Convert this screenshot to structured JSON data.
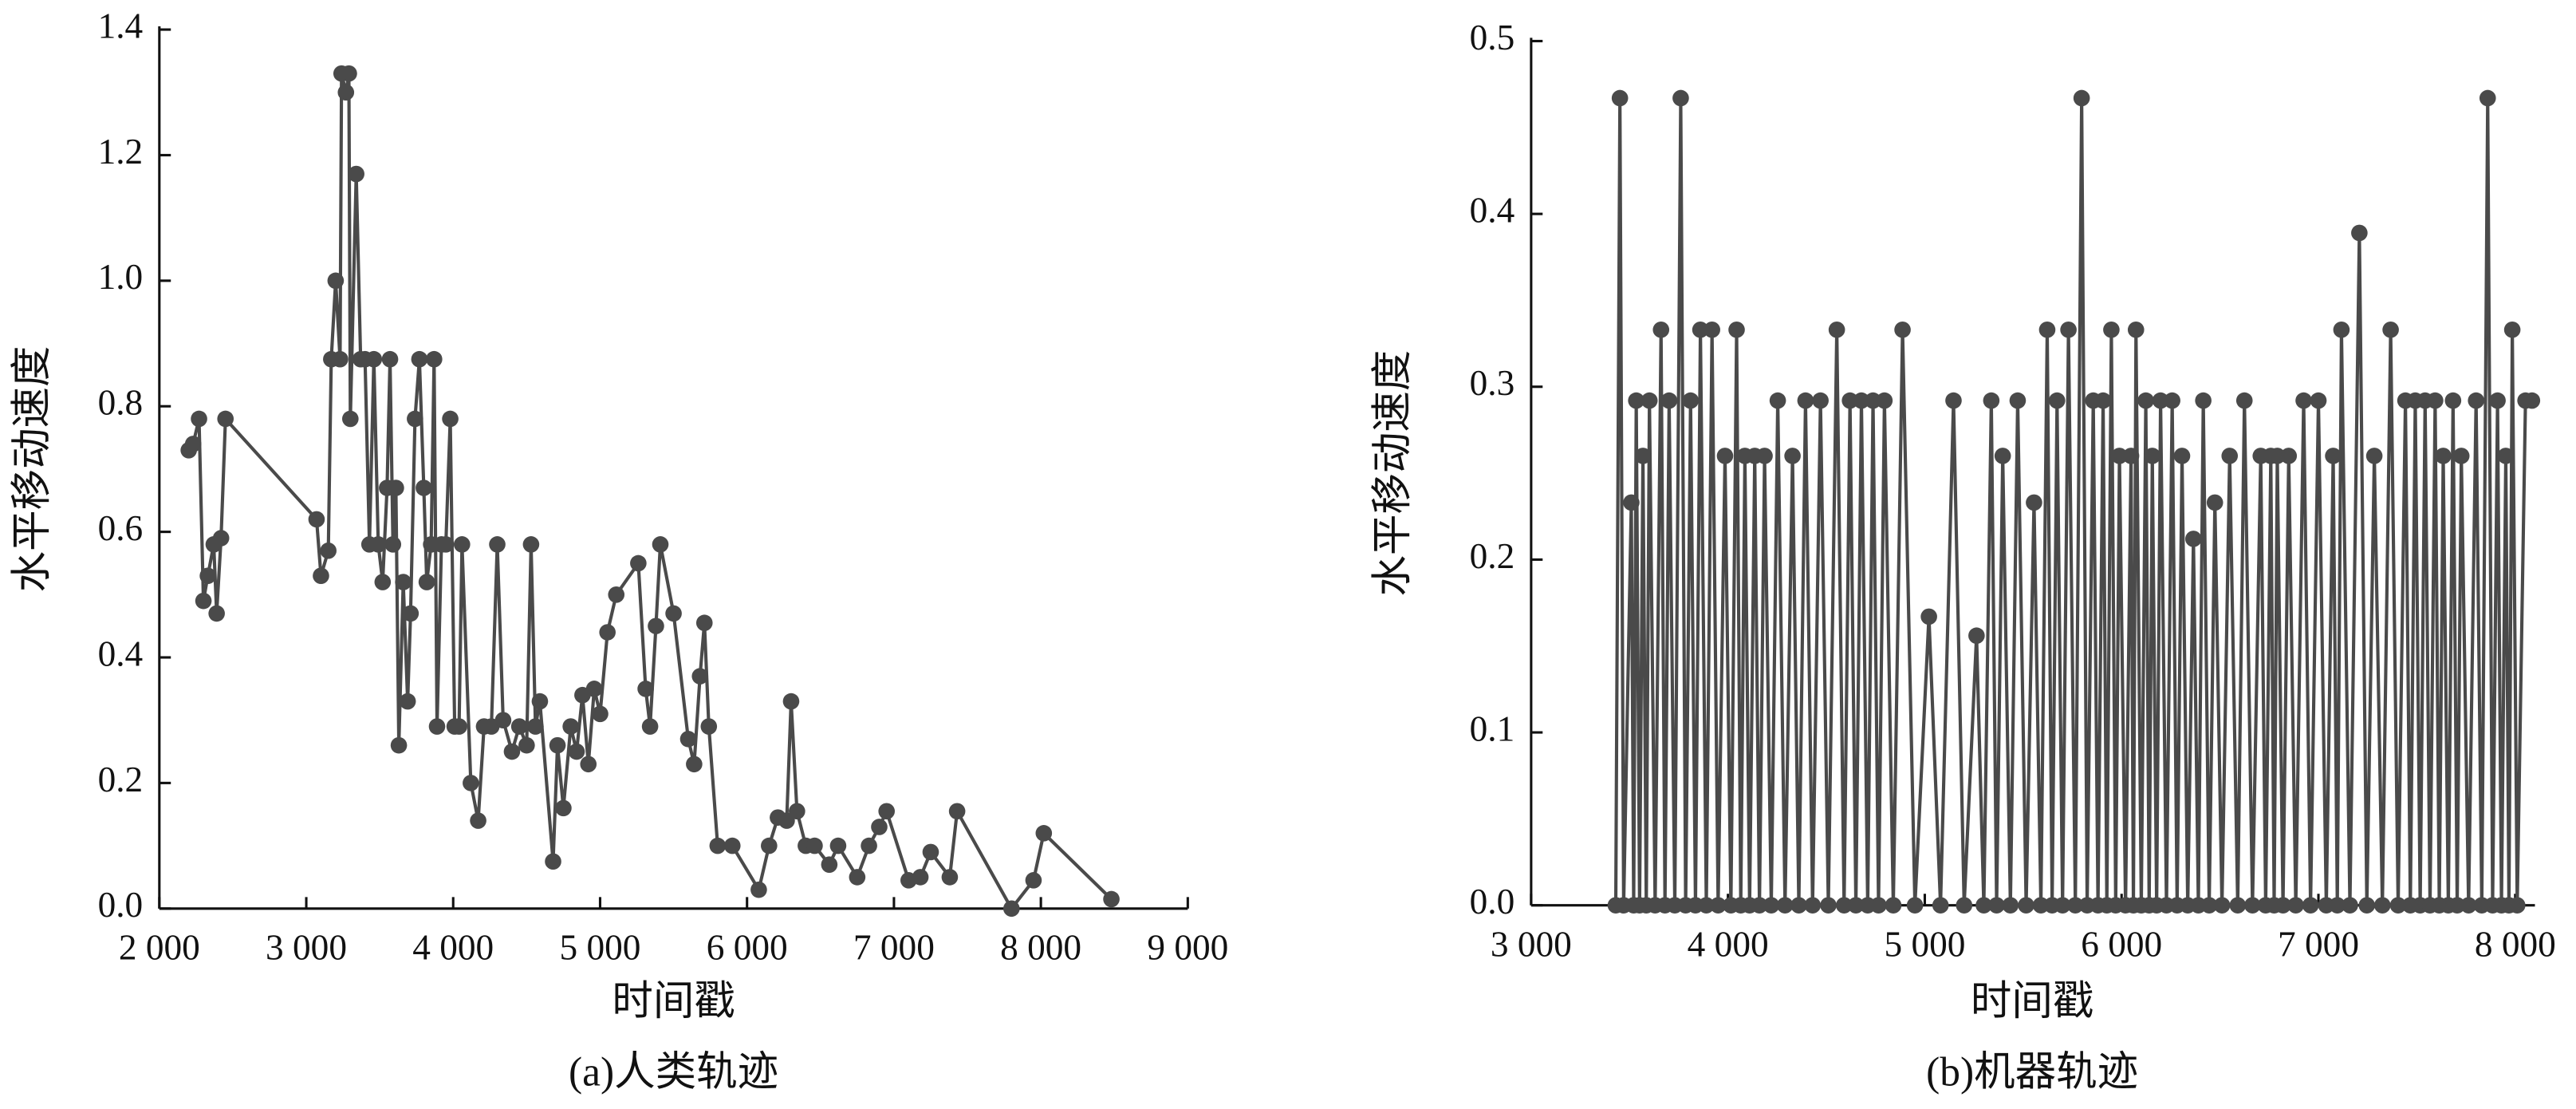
{
  "chart_data": [
    {
      "type": "line",
      "caption": "(a)人类轨迹",
      "xlabel": "时间戳",
      "ylabel": "水平移动速度",
      "color": "#4a4a4a",
      "xlim": [
        2000,
        9000
      ],
      "ylim": [
        0,
        1.4
      ],
      "xticks": [
        {
          "value": 2000,
          "label": "2 000"
        },
        {
          "value": 3000,
          "label": "3 000"
        },
        {
          "value": 4000,
          "label": "4 000"
        },
        {
          "value": 5000,
          "label": "5 000"
        },
        {
          "value": 6000,
          "label": "6 000"
        },
        {
          "value": 7000,
          "label": "7 000"
        },
        {
          "value": 8000,
          "label": "8 000"
        },
        {
          "value": 9000,
          "label": "9 000"
        }
      ],
      "yticks": [
        {
          "value": 0,
          "label": "0.0"
        },
        0.2,
        0.4,
        0.6,
        0.8,
        {
          "value": 1,
          "label": "1.0"
        },
        1.2,
        1.4
      ],
      "x": [
        2200,
        2230,
        2270,
        2300,
        2330,
        2370,
        2390,
        2420,
        2450,
        3070,
        3100,
        3150,
        3170,
        3200,
        3230,
        3240,
        3270,
        3290,
        3300,
        3340,
        3370,
        3400,
        3430,
        3460,
        3490,
        3520,
        3550,
        3570,
        3590,
        3610,
        3630,
        3660,
        3690,
        3710,
        3740,
        3770,
        3800,
        3820,
        3850,
        3870,
        3890,
        3920,
        3950,
        3980,
        4010,
        4040,
        4060,
        4120,
        4170,
        4210,
        4260,
        4300,
        4340,
        4400,
        4450,
        4500,
        4530,
        4560,
        4590,
        4680,
        4710,
        4750,
        4800,
        4840,
        4880,
        4920,
        4960,
        5000,
        5050,
        5110,
        5260,
        5310,
        5340,
        5380,
        5410,
        5500,
        5600,
        5640,
        5680,
        5710,
        5740,
        5800,
        5900,
        6080,
        6150,
        6210,
        6270,
        6300,
        6340,
        6400,
        6460,
        6560,
        6620,
        6750,
        6830,
        6900,
        6950,
        7100,
        7180,
        7250,
        7380,
        7430,
        7800,
        7950,
        8020,
        8480
      ],
      "values": [
        0.73,
        0.74,
        0.78,
        0.49,
        0.53,
        0.58,
        0.47,
        0.59,
        0.78,
        0.62,
        0.53,
        0.57,
        0.875,
        1.0,
        0.875,
        1.33,
        1.3,
        1.33,
        0.78,
        1.17,
        0.875,
        0.875,
        0.58,
        0.875,
        0.58,
        0.52,
        0.67,
        0.875,
        0.58,
        0.67,
        0.26,
        0.52,
        0.33,
        0.47,
        0.78,
        0.875,
        0.67,
        0.52,
        0.58,
        0.875,
        0.29,
        0.58,
        0.58,
        0.78,
        0.29,
        0.29,
        0.58,
        0.2,
        0.14,
        0.29,
        0.29,
        0.58,
        0.3,
        0.25,
        0.29,
        0.26,
        0.58,
        0.29,
        0.33,
        0.075,
        0.26,
        0.16,
        0.29,
        0.25,
        0.34,
        0.23,
        0.35,
        0.31,
        0.44,
        0.5,
        0.55,
        0.35,
        0.29,
        0.45,
        0.58,
        0.47,
        0.27,
        0.23,
        0.37,
        0.455,
        0.29,
        0.1,
        0.1,
        0.03,
        0.1,
        0.145,
        0.14,
        0.33,
        0.155,
        0.1,
        0.1,
        0.07,
        0.1,
        0.05,
        0.1,
        0.13,
        0.155,
        0.045,
        0.05,
        0.09,
        0.05,
        0.155,
        0,
        0.045,
        0.12,
        0.015
      ]
    },
    {
      "type": "line",
      "caption": "(b)机器轨迹",
      "xlabel": "时间戳",
      "ylabel": "水平移动速度",
      "color": "#4a4a4a",
      "xlim": [
        3000,
        8100
      ],
      "ylim": [
        0,
        0.5
      ],
      "xticks": [
        {
          "value": 3000,
          "label": "3 000"
        },
        {
          "value": 4000,
          "label": "4 000"
        },
        {
          "value": 5000,
          "label": "5 000"
        },
        {
          "value": 6000,
          "label": "6 000"
        },
        {
          "value": 7000,
          "label": "7 000"
        },
        {
          "value": 8000,
          "label": "8 000"
        }
      ],
      "yticks": [
        {
          "value": 0,
          "label": "0.0"
        },
        0.1,
        0.2,
        0.3,
        0.4,
        0.5
      ],
      "x": [
        3430,
        3451,
        3470,
        3509,
        3521,
        3534,
        3551,
        3568,
        3585,
        3601,
        3630,
        3660,
        3680,
        3701,
        3730,
        3760,
        3785,
        3810,
        3835,
        3860,
        3890,
        3919,
        3950,
        3985,
        4015,
        4044,
        4065,
        4086,
        4110,
        4136,
        4160,
        4186,
        4220,
        4253,
        4290,
        4328,
        4360,
        4394,
        4430,
        4470,
        4510,
        4553,
        4590,
        4620,
        4650,
        4678,
        4710,
        4737,
        4765,
        4795,
        4840,
        4887,
        4950,
        5021,
        5080,
        5146,
        5200,
        5263,
        5300,
        5338,
        5365,
        5396,
        5435,
        5472,
        5515,
        5555,
        5590,
        5622,
        5647,
        5672,
        5700,
        5730,
        5765,
        5797,
        5825,
        5856,
        5880,
        5906,
        5925,
        5948,
        5970,
        5989,
        6020,
        6048,
        6060,
        6073,
        6100,
        6123,
        6140,
        6156,
        6178,
        6198,
        6228,
        6257,
        6282,
        6307,
        6336,
        6365,
        6390,
        6415,
        6445,
        6474,
        6510,
        6549,
        6590,
        6624,
        6665,
        6707,
        6732,
        6758,
        6775,
        6791,
        6820,
        6849,
        6885,
        6925,
        6960,
        7000,
        7040,
        7075,
        7096,
        7117,
        7160,
        7208,
        7246,
        7284,
        7325,
        7367,
        7405,
        7442,
        7467,
        7492,
        7517,
        7542,
        7567,
        7593,
        7614,
        7634,
        7660,
        7684,
        7705,
        7726,
        7763,
        7801,
        7830,
        7860,
        7885,
        7910,
        7930,
        7952,
        7968,
        7985,
        8010,
        8052,
        8085
      ],
      "values": [
        0,
        0.467,
        0,
        0.233,
        0,
        0.292,
        0,
        0.26,
        0,
        0.292,
        0,
        0.333,
        0,
        0.292,
        0,
        0.467,
        0,
        0.292,
        0,
        0.333,
        0,
        0.333,
        0,
        0.26,
        0,
        0.333,
        0,
        0.26,
        0,
        0.26,
        0,
        0.26,
        0,
        0.292,
        0,
        0.26,
        0,
        0.292,
        0,
        0.292,
        0,
        0.333,
        0,
        0.292,
        0,
        0.292,
        0,
        0.292,
        0,
        0.292,
        0,
        0.333,
        0,
        0.167,
        0,
        0.292,
        0,
        0.156,
        0,
        0.292,
        0,
        0.26,
        0,
        0.292,
        0,
        0.233,
        0,
        0.333,
        0,
        0.292,
        0,
        0.333,
        0,
        0.467,
        0,
        0.292,
        0,
        0.292,
        0,
        0.333,
        0,
        0.26,
        0,
        0.26,
        0,
        0.333,
        0,
        0.292,
        0,
        0.26,
        0,
        0.292,
        0,
        0.292,
        0,
        0.26,
        0,
        0.212,
        0,
        0.292,
        0,
        0.233,
        0,
        0.26,
        0,
        0.292,
        0,
        0.26,
        0,
        0.26,
        0,
        0.26,
        0,
        0.26,
        0,
        0.292,
        0,
        0.292,
        0,
        0.26,
        0,
        0.333,
        0,
        0.389,
        0,
        0.26,
        0,
        0.333,
        0,
        0.292,
        0,
        0.292,
        0,
        0.292,
        0,
        0.292,
        0,
        0.26,
        0,
        0.292,
        0,
        0.26,
        0,
        0.292,
        0,
        0.467,
        0,
        0.292,
        0,
        0.26,
        0,
        0.333,
        0,
        0.292,
        0.292
      ]
    }
  ]
}
